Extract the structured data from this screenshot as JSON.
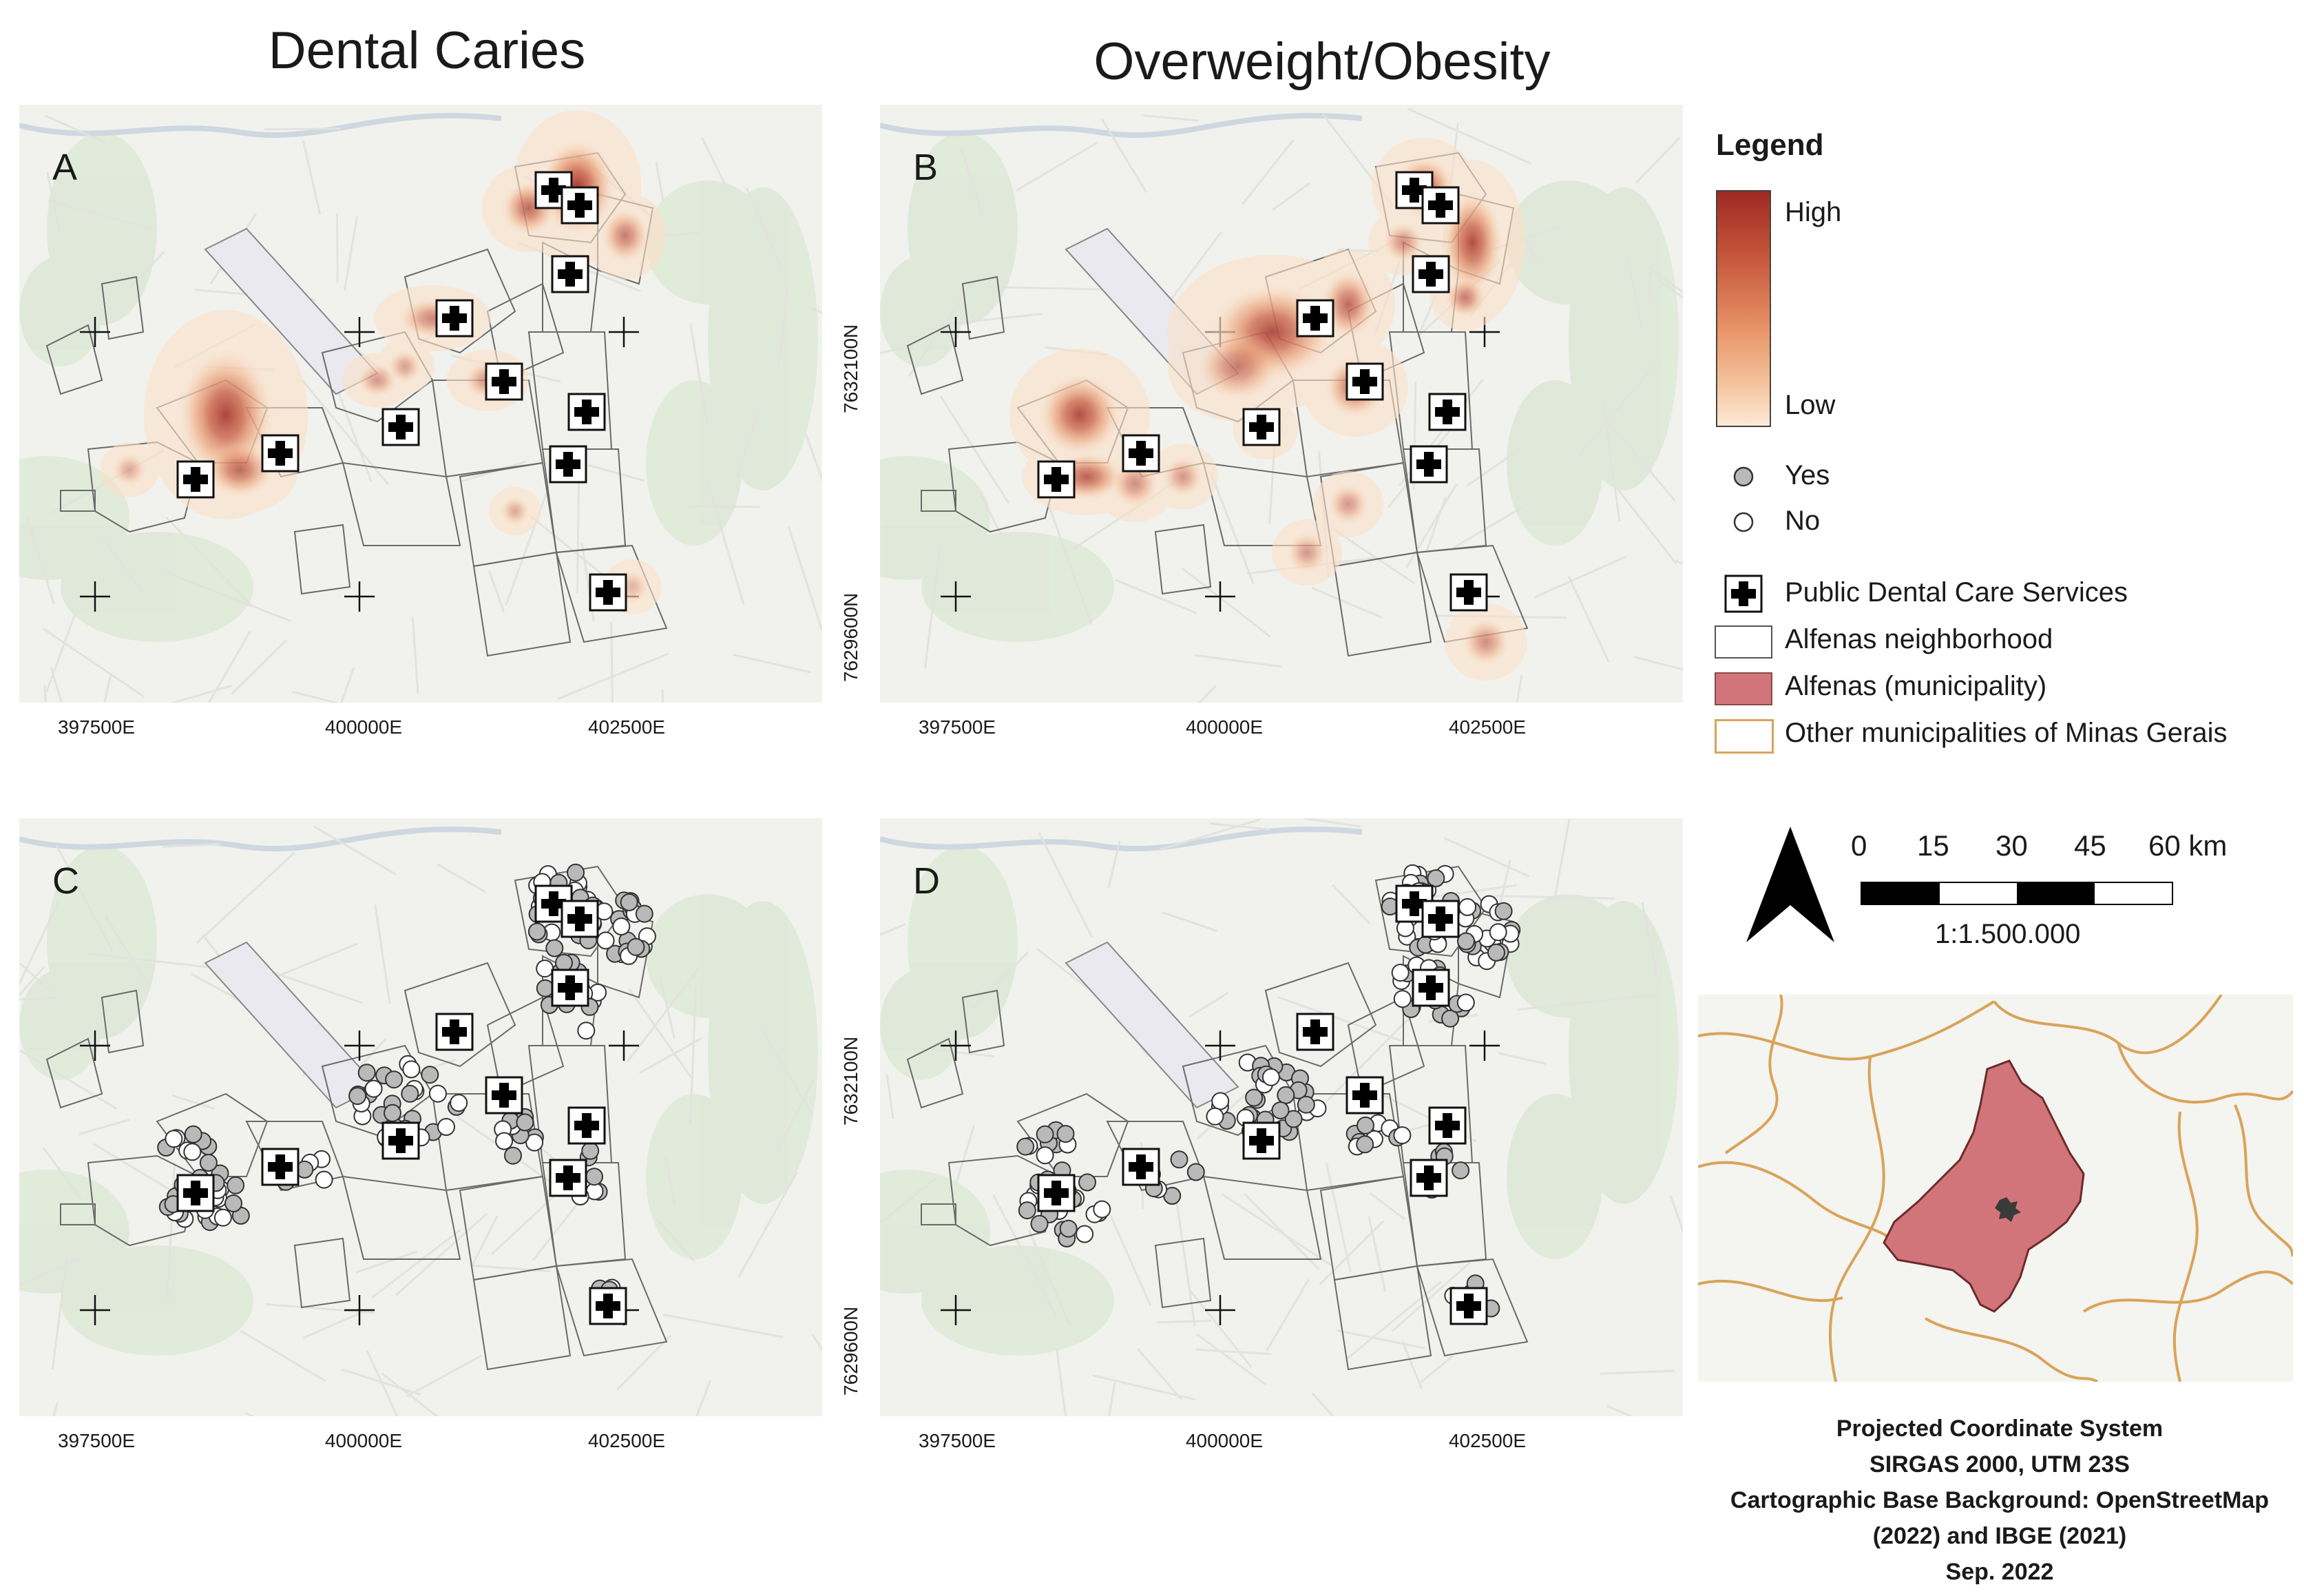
{
  "titles": {
    "dental": "Dental Caries",
    "obesity": "Overweight/Obesity"
  },
  "panels": {
    "a": {
      "letter": "A"
    },
    "b": {
      "letter": "B"
    },
    "c": {
      "letter": "C"
    },
    "d": {
      "letter": "D"
    }
  },
  "axes": {
    "east": [
      "397500E",
      "400000E",
      "402500E"
    ],
    "north": [
      "7632100N",
      "7629600N"
    ]
  },
  "legend": {
    "title": "Legend",
    "high": "High",
    "low": "Low",
    "yes": "Yes",
    "no": "No",
    "services": "Public Dental Care Services",
    "neighborhood": "Alfenas neighborhood",
    "municipality": "Alfenas (municipality)",
    "others": "Other municipalities of Minas Gerais"
  },
  "scale": {
    "ticks": [
      "0",
      "15",
      "30",
      "45",
      "60 km"
    ],
    "ratio": "1:1.500.000"
  },
  "footer": {
    "line1": "Projected Coordinate System",
    "line2": "SIRGAS 2000, UTM 23S",
    "line3": "Cartographic Base Background: OpenStreetMap",
    "line4": "(2022) and IBGE (2021)",
    "line5": "Sep. 2022"
  },
  "colors": {
    "heat_high": "#9e2a22",
    "heat_low": "#fbe3cc",
    "municipality": "#d2757a",
    "other_border": "#d8a45a",
    "yes_point": "#b9b9b9",
    "no_point": "#ffffff"
  }
}
